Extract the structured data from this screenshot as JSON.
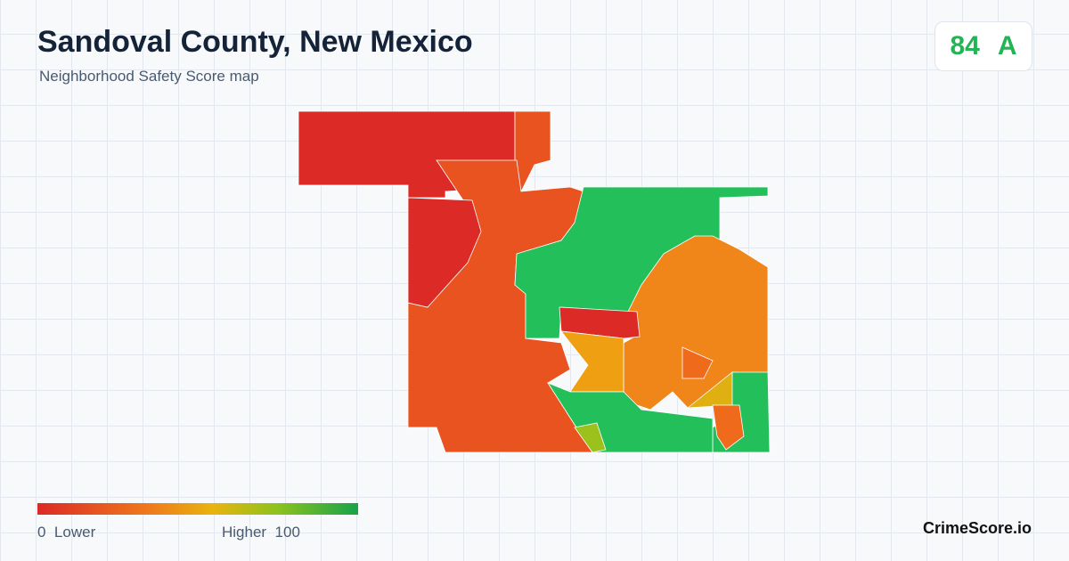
{
  "header": {
    "title": "Sandoval County, New Mexico",
    "subtitle": "Neighborhood Safety Score map"
  },
  "score": {
    "value": 84,
    "grade": "A"
  },
  "legend": {
    "min": 0,
    "min_label": "Lower",
    "max_label": "Higher",
    "max": 100
  },
  "brand": "CrimeScore.io"
}
